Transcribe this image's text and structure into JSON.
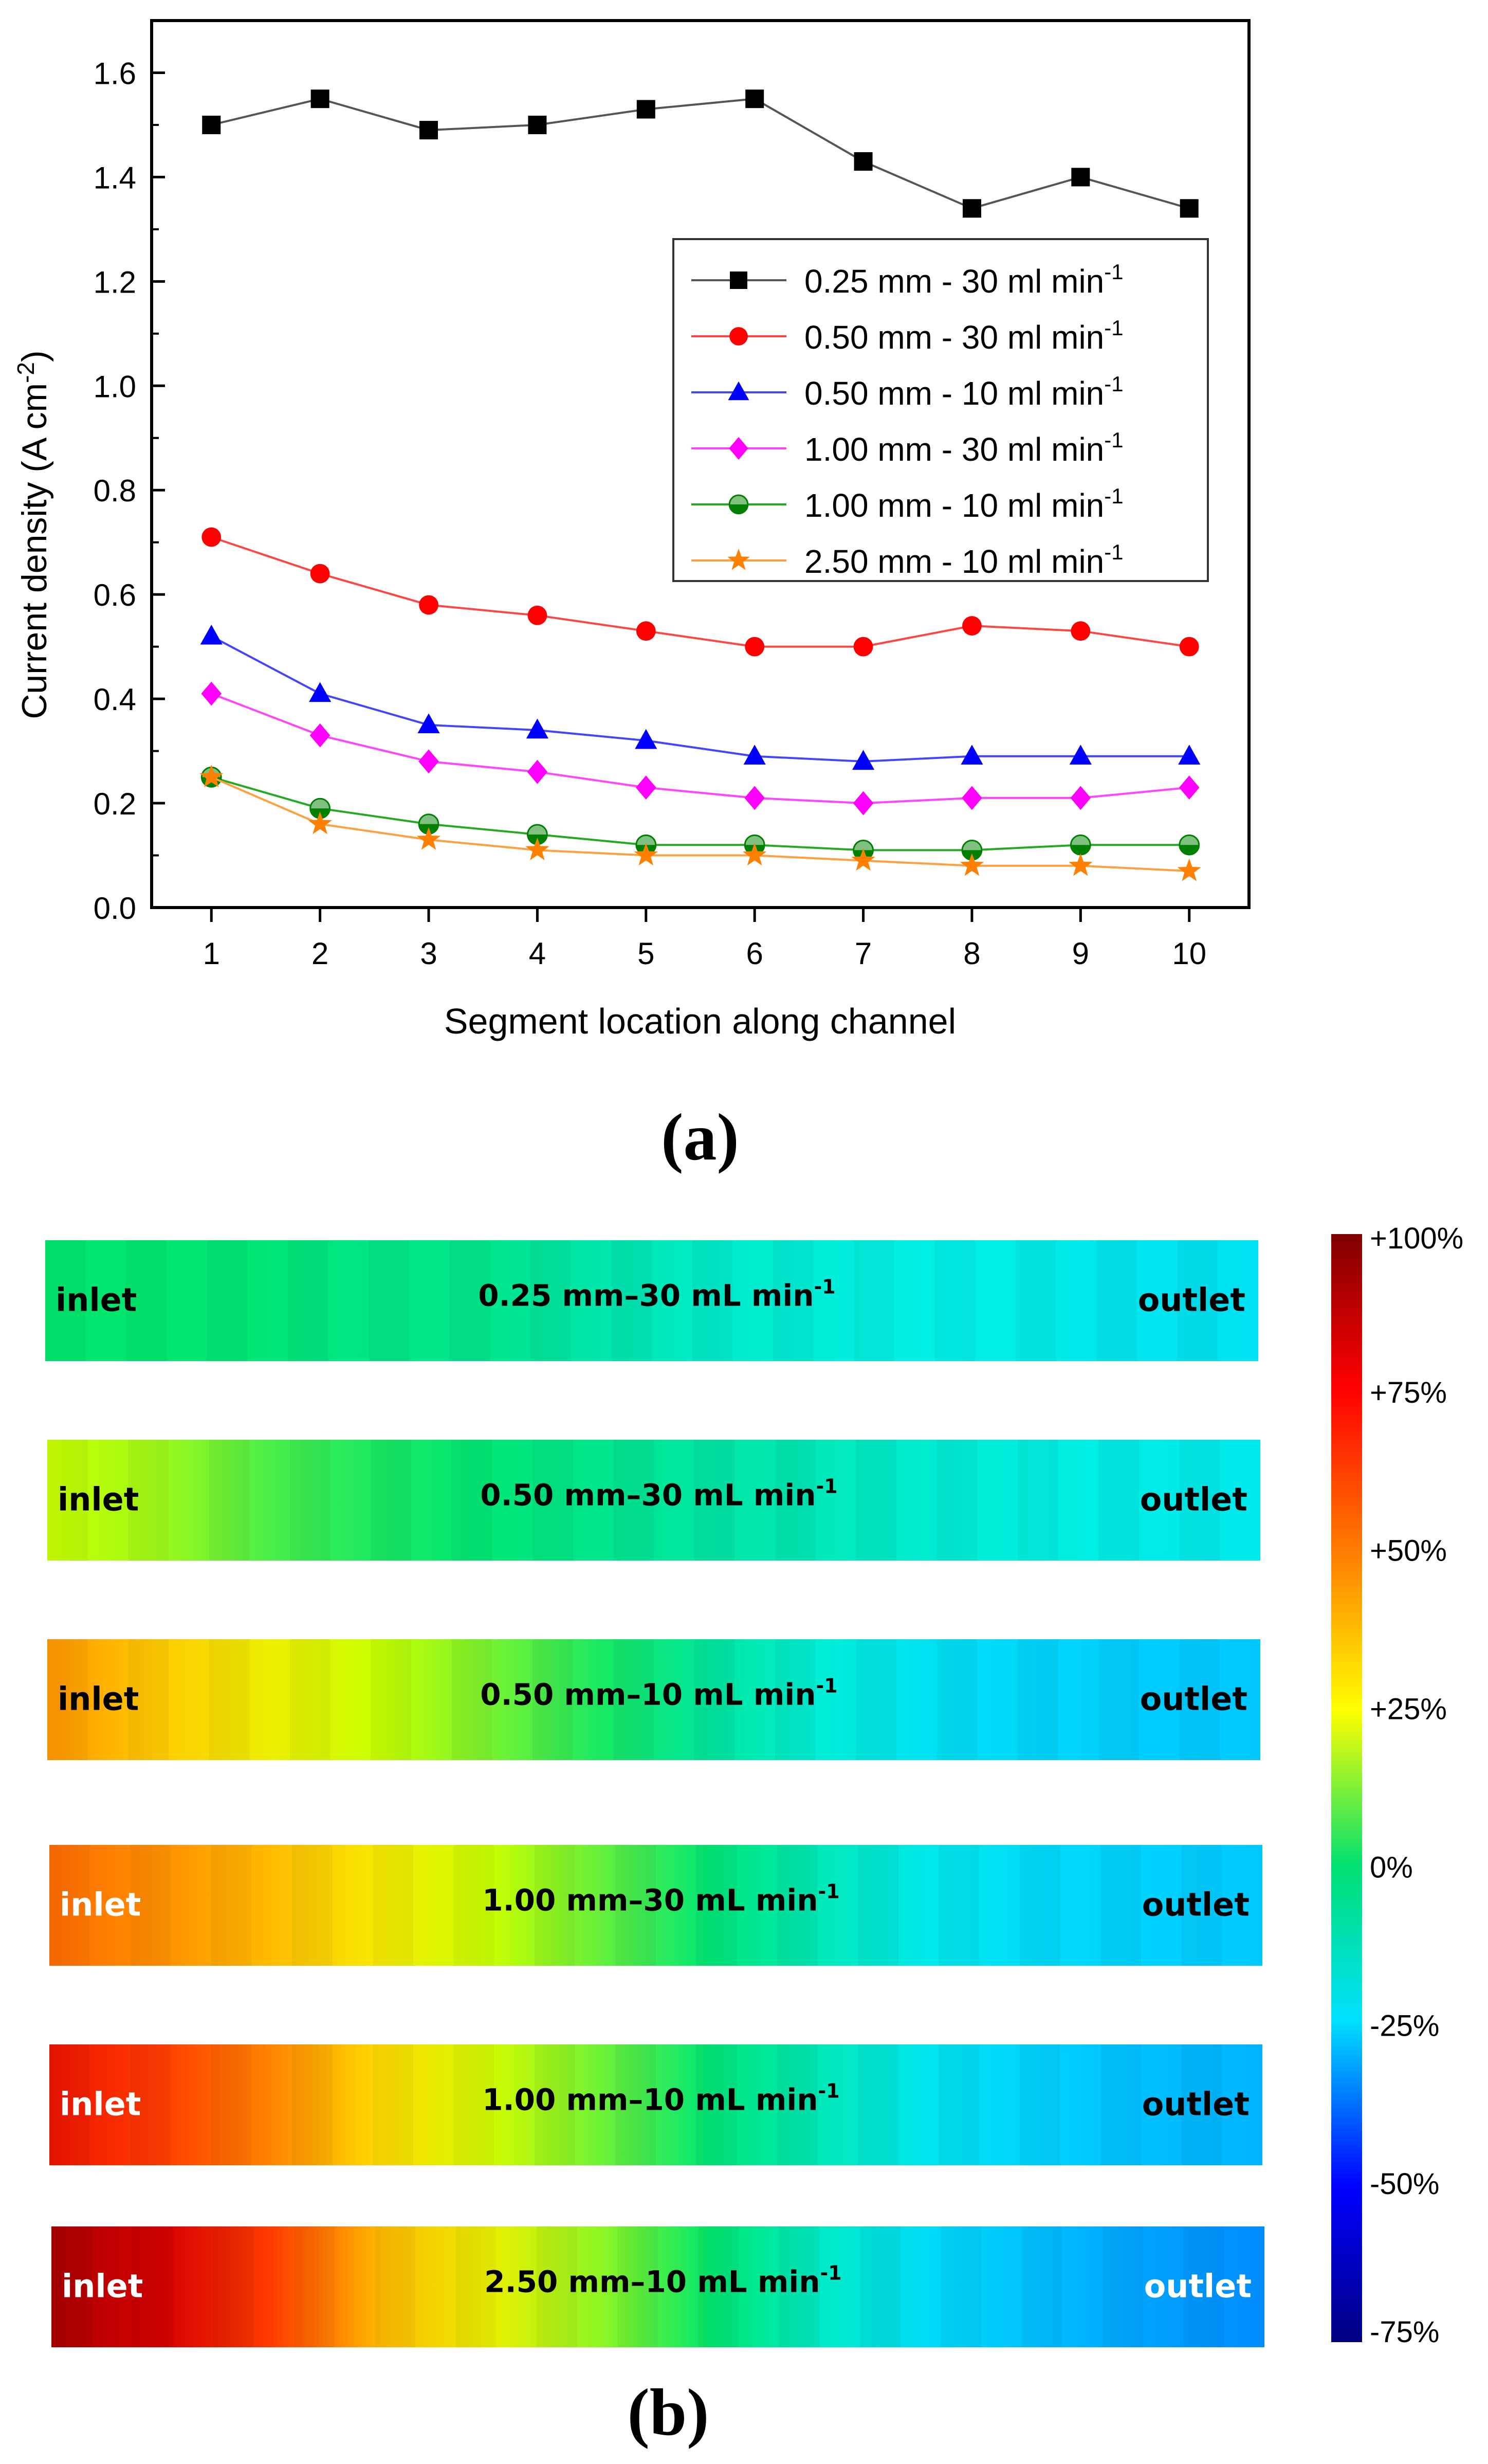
{
  "chart_data": [
    {
      "type": "line",
      "panel_label": "(a)",
      "xlabel": "Segment location along channel",
      "ylabel": "Current density (A cm",
      "ylabel_sup": "-2",
      "ylabel_close": ")",
      "x": [
        1,
        2,
        3,
        4,
        5,
        6,
        7,
        8,
        9,
        10
      ],
      "xlim": [
        0.45,
        10.55
      ],
      "ylim": [
        0.0,
        1.7
      ],
      "yticks": [
        "0.0",
        "0.2",
        "0.4",
        "0.6",
        "0.8",
        "1.0",
        "1.2",
        "1.4",
        "1.6"
      ],
      "xticks": [
        "1",
        "2",
        "3",
        "4",
        "5",
        "6",
        "7",
        "8",
        "9",
        "10"
      ],
      "legend_position": "right",
      "legend_unit_sup": "-1",
      "series": [
        {
          "name": "0.25 mm - 30 ml min",
          "marker": "square",
          "color": "#000000",
          "line_color": "#555555",
          "values": [
            1.5,
            1.55,
            1.49,
            1.5,
            1.53,
            1.55,
            1.43,
            1.34,
            1.4,
            1.34
          ]
        },
        {
          "name": "0.50 mm - 30 ml min",
          "marker": "circle",
          "color": "#ff0000",
          "line_color": "#ff4444",
          "values": [
            0.71,
            0.64,
            0.58,
            0.56,
            0.53,
            0.5,
            0.5,
            0.54,
            0.53,
            0.5
          ]
        },
        {
          "name": "0.50 mm - 10 ml min",
          "marker": "triangle",
          "color": "#0000ff",
          "line_color": "#4444ff",
          "values": [
            0.52,
            0.41,
            0.35,
            0.34,
            0.32,
            0.29,
            0.28,
            0.29,
            0.29,
            0.29
          ]
        },
        {
          "name": "1.00 mm - 30 ml min",
          "marker": "diamond",
          "color": "#ff00ff",
          "line_color": "#ff44ff",
          "values": [
            0.41,
            0.33,
            0.28,
            0.26,
            0.23,
            0.21,
            0.2,
            0.21,
            0.21,
            0.23
          ]
        },
        {
          "name": "1.00 mm - 10 ml min",
          "marker": "halfcircle",
          "color": "#008000",
          "line_color": "#22aa22",
          "values": [
            0.25,
            0.19,
            0.16,
            0.14,
            0.12,
            0.12,
            0.11,
            0.11,
            0.12,
            0.12
          ]
        },
        {
          "name": "2.50 mm - 10 ml min",
          "marker": "star",
          "color": "#ff8000",
          "line_color": "#ffa040",
          "values": [
            0.25,
            0.16,
            0.13,
            0.11,
            0.1,
            0.1,
            0.09,
            0.08,
            0.08,
            0.07
          ]
        }
      ]
    },
    {
      "type": "heatmap",
      "panel_label": "(b)",
      "colorbar_range": [
        -75,
        100
      ],
      "colorbar_ticks": [
        "+100%",
        "+75%",
        "+50%",
        "+25%",
        "0%",
        "-25%",
        "-50%",
        "-75%"
      ],
      "inlet_label": "inlet",
      "outlet_label": "outlet",
      "unit_sup": "-1",
      "channels": [
        {
          "label": "0.25 mm–30 mL min",
          "label_color": "#000000",
          "deviation_percent": [
            10,
            10,
            9,
            7,
            6,
            2,
            -2,
            -4,
            -6,
            -7,
            -9,
            -10
          ]
        },
        {
          "label": "0.50 mm–30 mL min",
          "label_color": "#000000",
          "deviation_percent": [
            28,
            24,
            16,
            12,
            9,
            6,
            3,
            0,
            -3,
            -5,
            -7,
            -8
          ]
        },
        {
          "label": "0.50 mm–10 mL min",
          "label_color": "#000000",
          "deviation_percent": [
            55,
            45,
            36,
            28,
            20,
            12,
            4,
            -4,
            -10,
            -13,
            -15,
            -16
          ]
        },
        {
          "label": "1.00 mm–30 mL min",
          "label_color": "#000000",
          "deviation_percent": [
            62,
            56,
            48,
            38,
            28,
            18,
            9,
            0,
            -8,
            -12,
            -14,
            -16
          ]
        },
        {
          "label": "1.00 mm–10 mL min",
          "label_color": "#000000",
          "deviation_percent": [
            80,
            70,
            58,
            42,
            30,
            19,
            9,
            0,
            -9,
            -14,
            -18,
            -20
          ]
        },
        {
          "label": "2.50 mm–10 mL min",
          "label_color": "#000000",
          "deviation_percent": [
            95,
            88,
            70,
            48,
            35,
            22,
            10,
            -2,
            -12,
            -18,
            -24,
            -28
          ]
        }
      ]
    }
  ]
}
